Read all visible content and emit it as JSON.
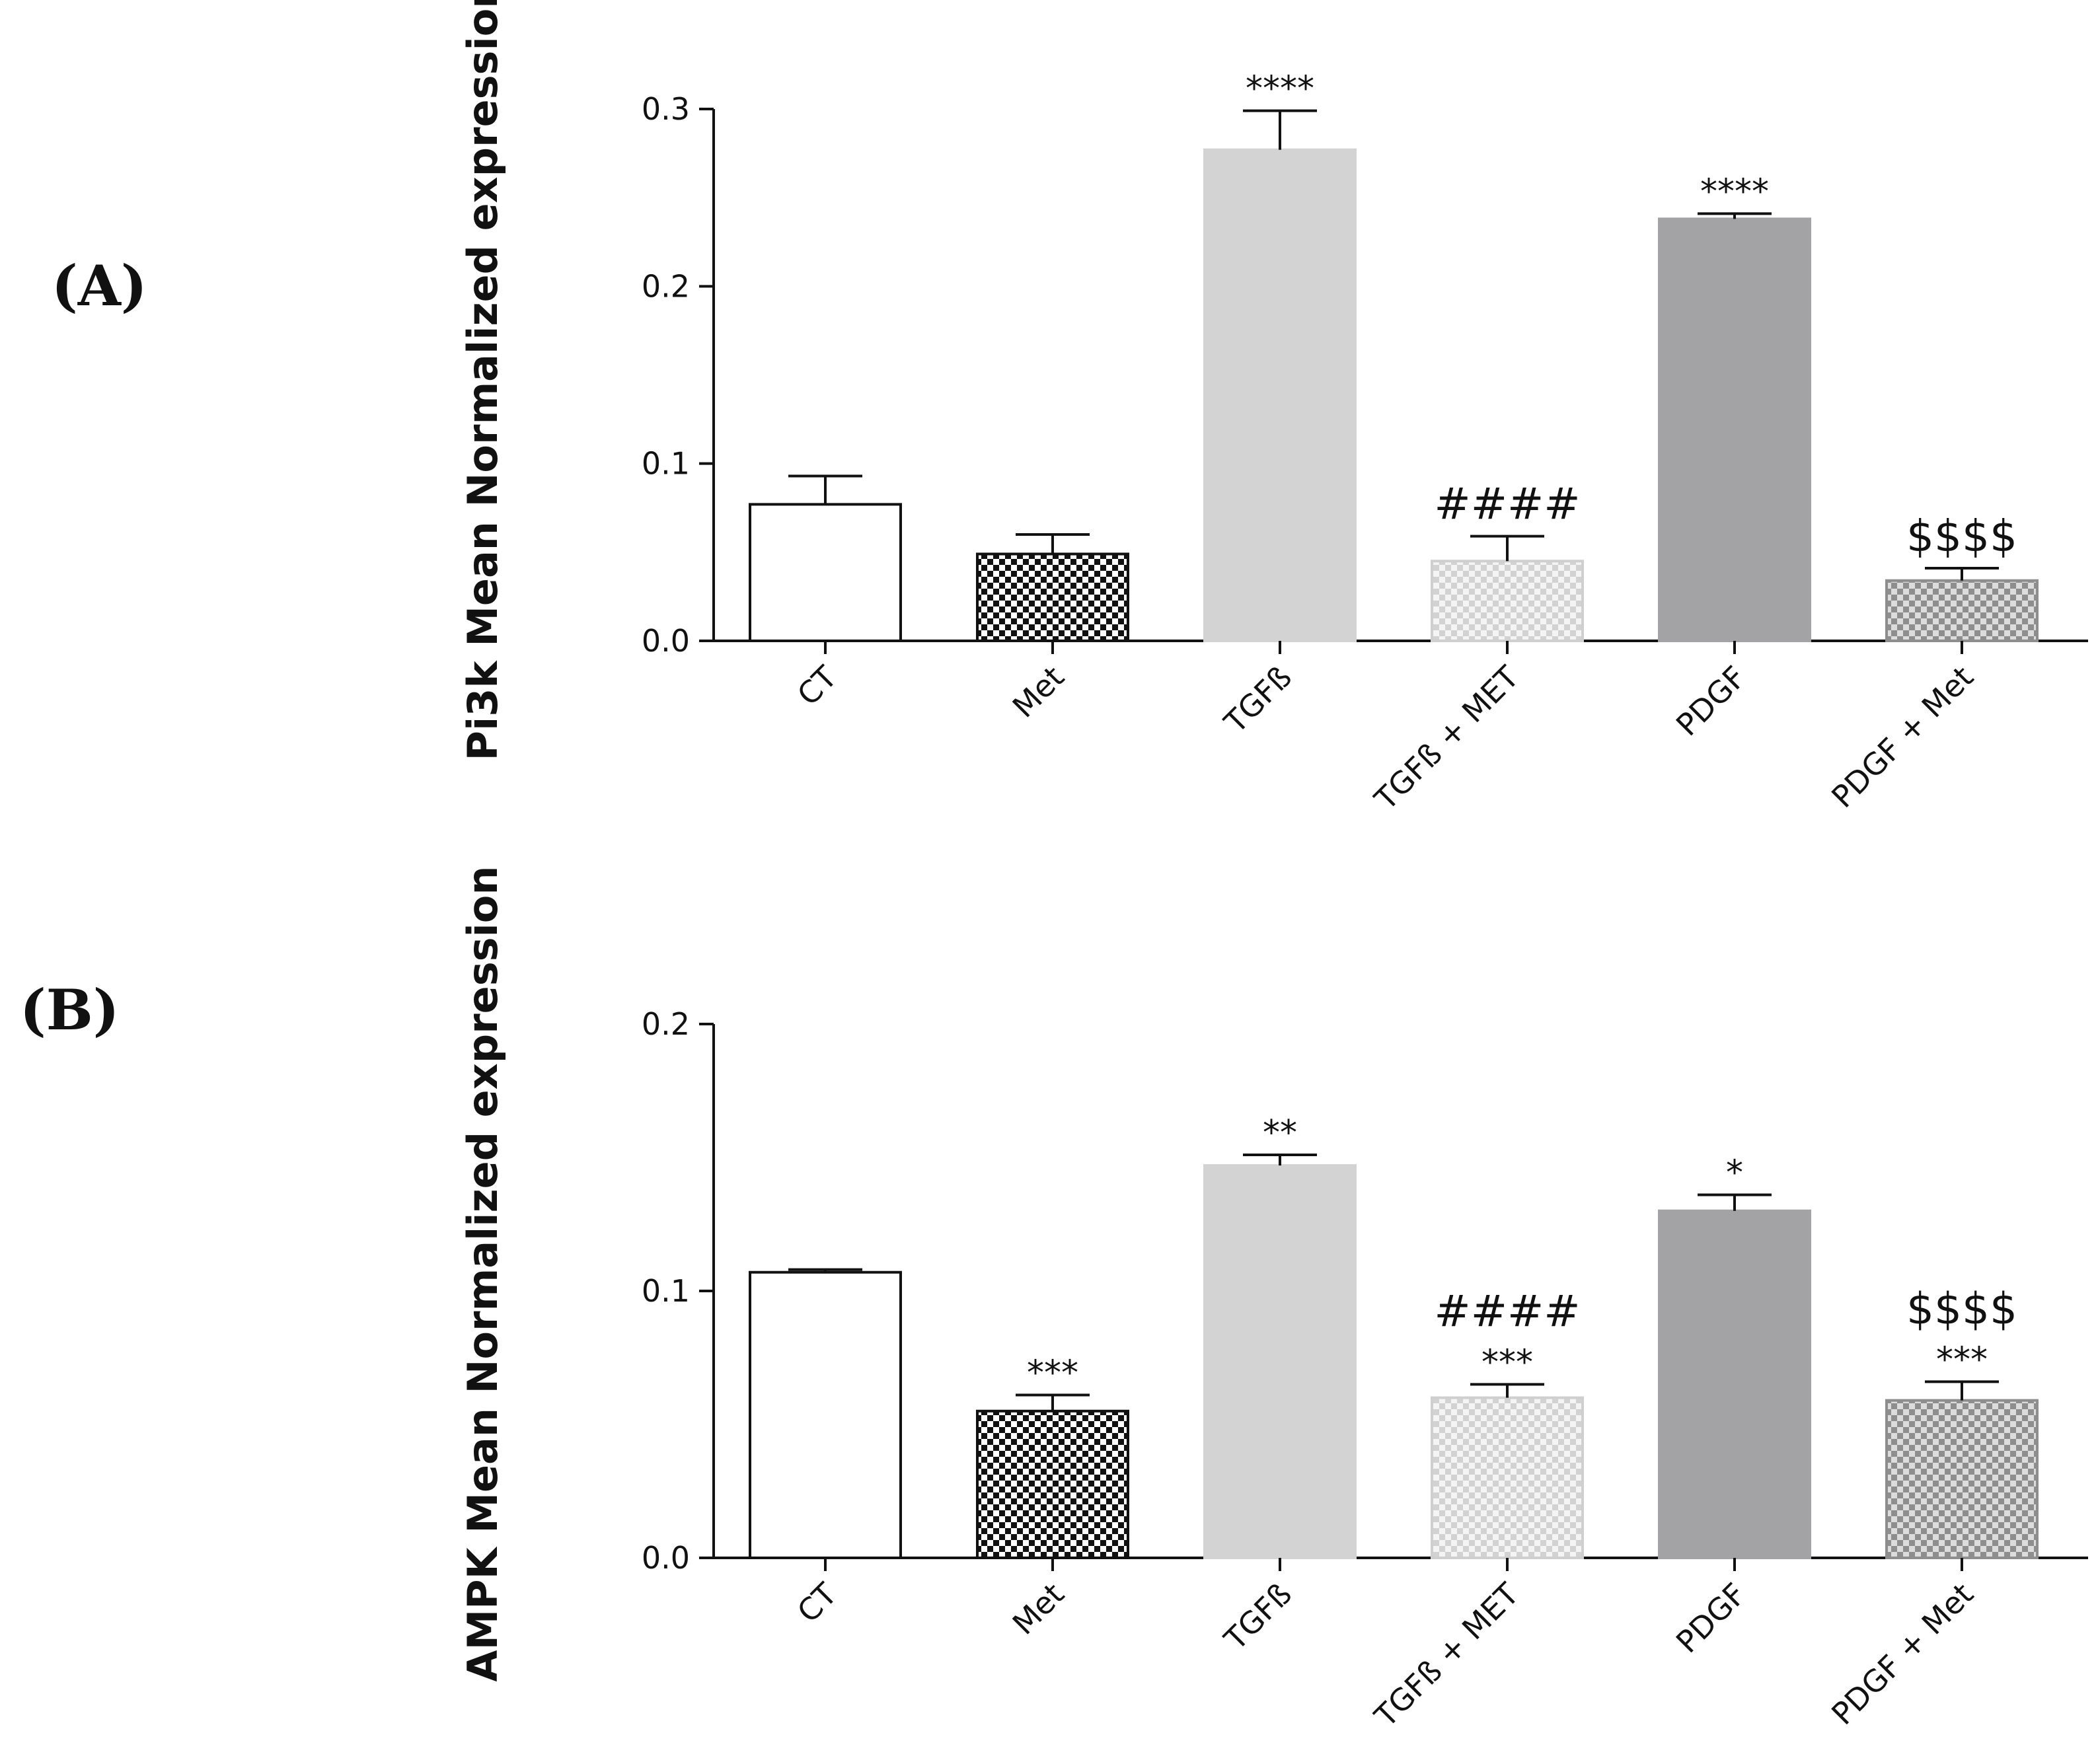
{
  "chart_data": [
    {
      "type": "bar",
      "panel_label": "(A)",
      "ylabel": "Pi3k Mean Normalized expression",
      "xlabel": "",
      "ylim": [
        0,
        0.3
      ],
      "yticks": [
        0.0,
        0.1,
        0.2,
        0.3
      ],
      "ytick_labels": [
        "0.0",
        "0.1",
        "0.2",
        "0.3"
      ],
      "categories": [
        "CT",
        "Met",
        "TGFß",
        "TGFß + MET",
        "PDGF",
        "PDGF + Met"
      ],
      "values": [
        0.077,
        0.049,
        0.277,
        0.045,
        0.238,
        0.034
      ],
      "errors": [
        0.016,
        0.011,
        0.022,
        0.014,
        0.003,
        0.007
      ],
      "annotations": [
        "",
        "",
        "****",
        "####",
        "****",
        "$$$$"
      ]
    },
    {
      "type": "bar",
      "panel_label": "(B)",
      "ylabel": "AMPK Mean Normalized expression",
      "xlabel": "",
      "ylim": [
        0,
        0.2
      ],
      "yticks": [
        0.0,
        0.1,
        0.2
      ],
      "ytick_labels": [
        "0.0",
        "0.1",
        "0.2"
      ],
      "categories": [
        "CT",
        "Met",
        "TGFß",
        "TGFß + MET",
        "PDGF",
        "PDGF + Met"
      ],
      "values": [
        0.107,
        0.055,
        0.147,
        0.06,
        0.13,
        0.059
      ],
      "errors": [
        0.001,
        0.006,
        0.004,
        0.005,
        0.006,
        0.007
      ],
      "annotations": [
        [],
        [
          "***"
        ],
        [
          "**"
        ],
        [
          "####",
          "***"
        ],
        [
          "*"
        ],
        [
          "$$$$",
          "***"
        ]
      ]
    }
  ],
  "colors": {
    "axis": "#111111",
    "bar_ct": "#ffffff",
    "bar_met_dark": "#111111",
    "bar_tgf": "#d3d3d3",
    "bar_tgf_met_light": "#dedede",
    "bar_pdgf": "#a3a3a6",
    "bar_pdgf_met_mid": "#9a9a9a"
  }
}
